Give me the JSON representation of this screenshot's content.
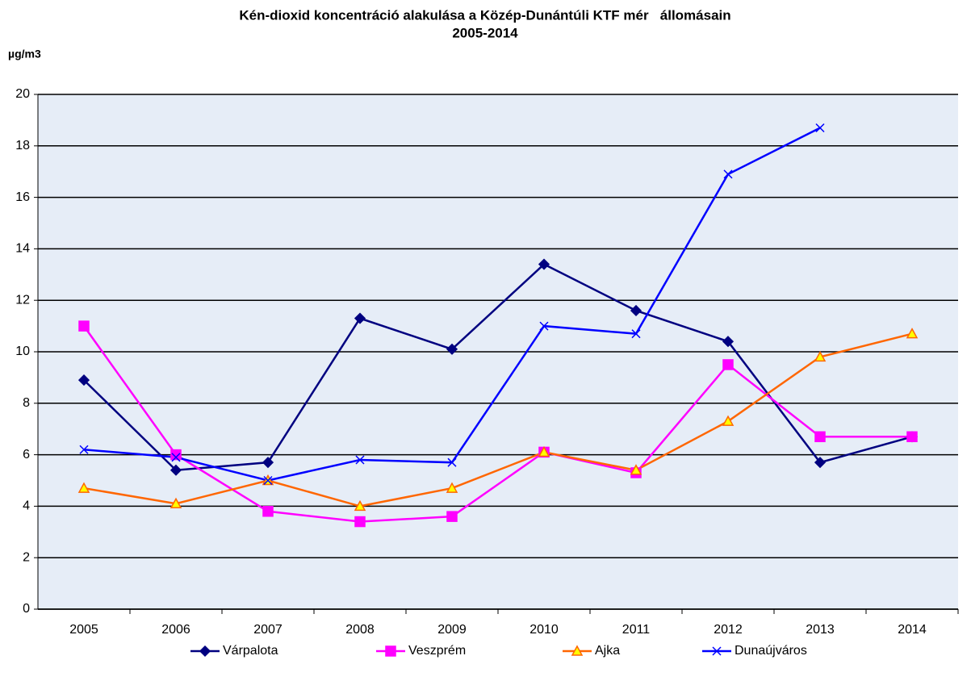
{
  "chart_data": {
    "type": "line",
    "title": "Kén-dioxid koncentráció alakulása a Közép-Dunántúli KTF mér   állomásain",
    "subtitle": "2005-2014",
    "y_label": "µg/m3",
    "categories": [
      "2005",
      "2006",
      "2007",
      "2008",
      "2009",
      "2010",
      "2011",
      "2012",
      "2013",
      "2014"
    ],
    "series": [
      {
        "name": "Várpalota",
        "color": "#000080",
        "marker": "diamond",
        "values": [
          8.9,
          5.4,
          5.7,
          11.3,
          10.1,
          13.4,
          11.6,
          10.4,
          5.7,
          6.7
        ]
      },
      {
        "name": "Veszprém",
        "color": "#ff00ff",
        "marker": "square",
        "values": [
          11.0,
          6.0,
          3.8,
          3.4,
          3.6,
          6.1,
          5.3,
          9.5,
          6.7,
          6.7
        ]
      },
      {
        "name": "Ajka",
        "color": "#ff6600",
        "marker": "triangle",
        "marker_fill": "#ffff00",
        "values": [
          4.7,
          4.1,
          5.0,
          4.0,
          4.7,
          6.1,
          5.4,
          7.3,
          9.8,
          10.7
        ]
      },
      {
        "name": "Dunaújváros",
        "color": "#0000ff",
        "marker": "x",
        "values": [
          6.2,
          5.9,
          5.0,
          5.8,
          5.7,
          11.0,
          10.7,
          16.9,
          18.7,
          null
        ]
      }
    ],
    "ylim": [
      0,
      20
    ],
    "yticks": [
      0,
      2,
      4,
      6,
      8,
      10,
      12,
      14,
      16,
      18,
      20
    ],
    "grid": true,
    "legend": "bottom"
  }
}
